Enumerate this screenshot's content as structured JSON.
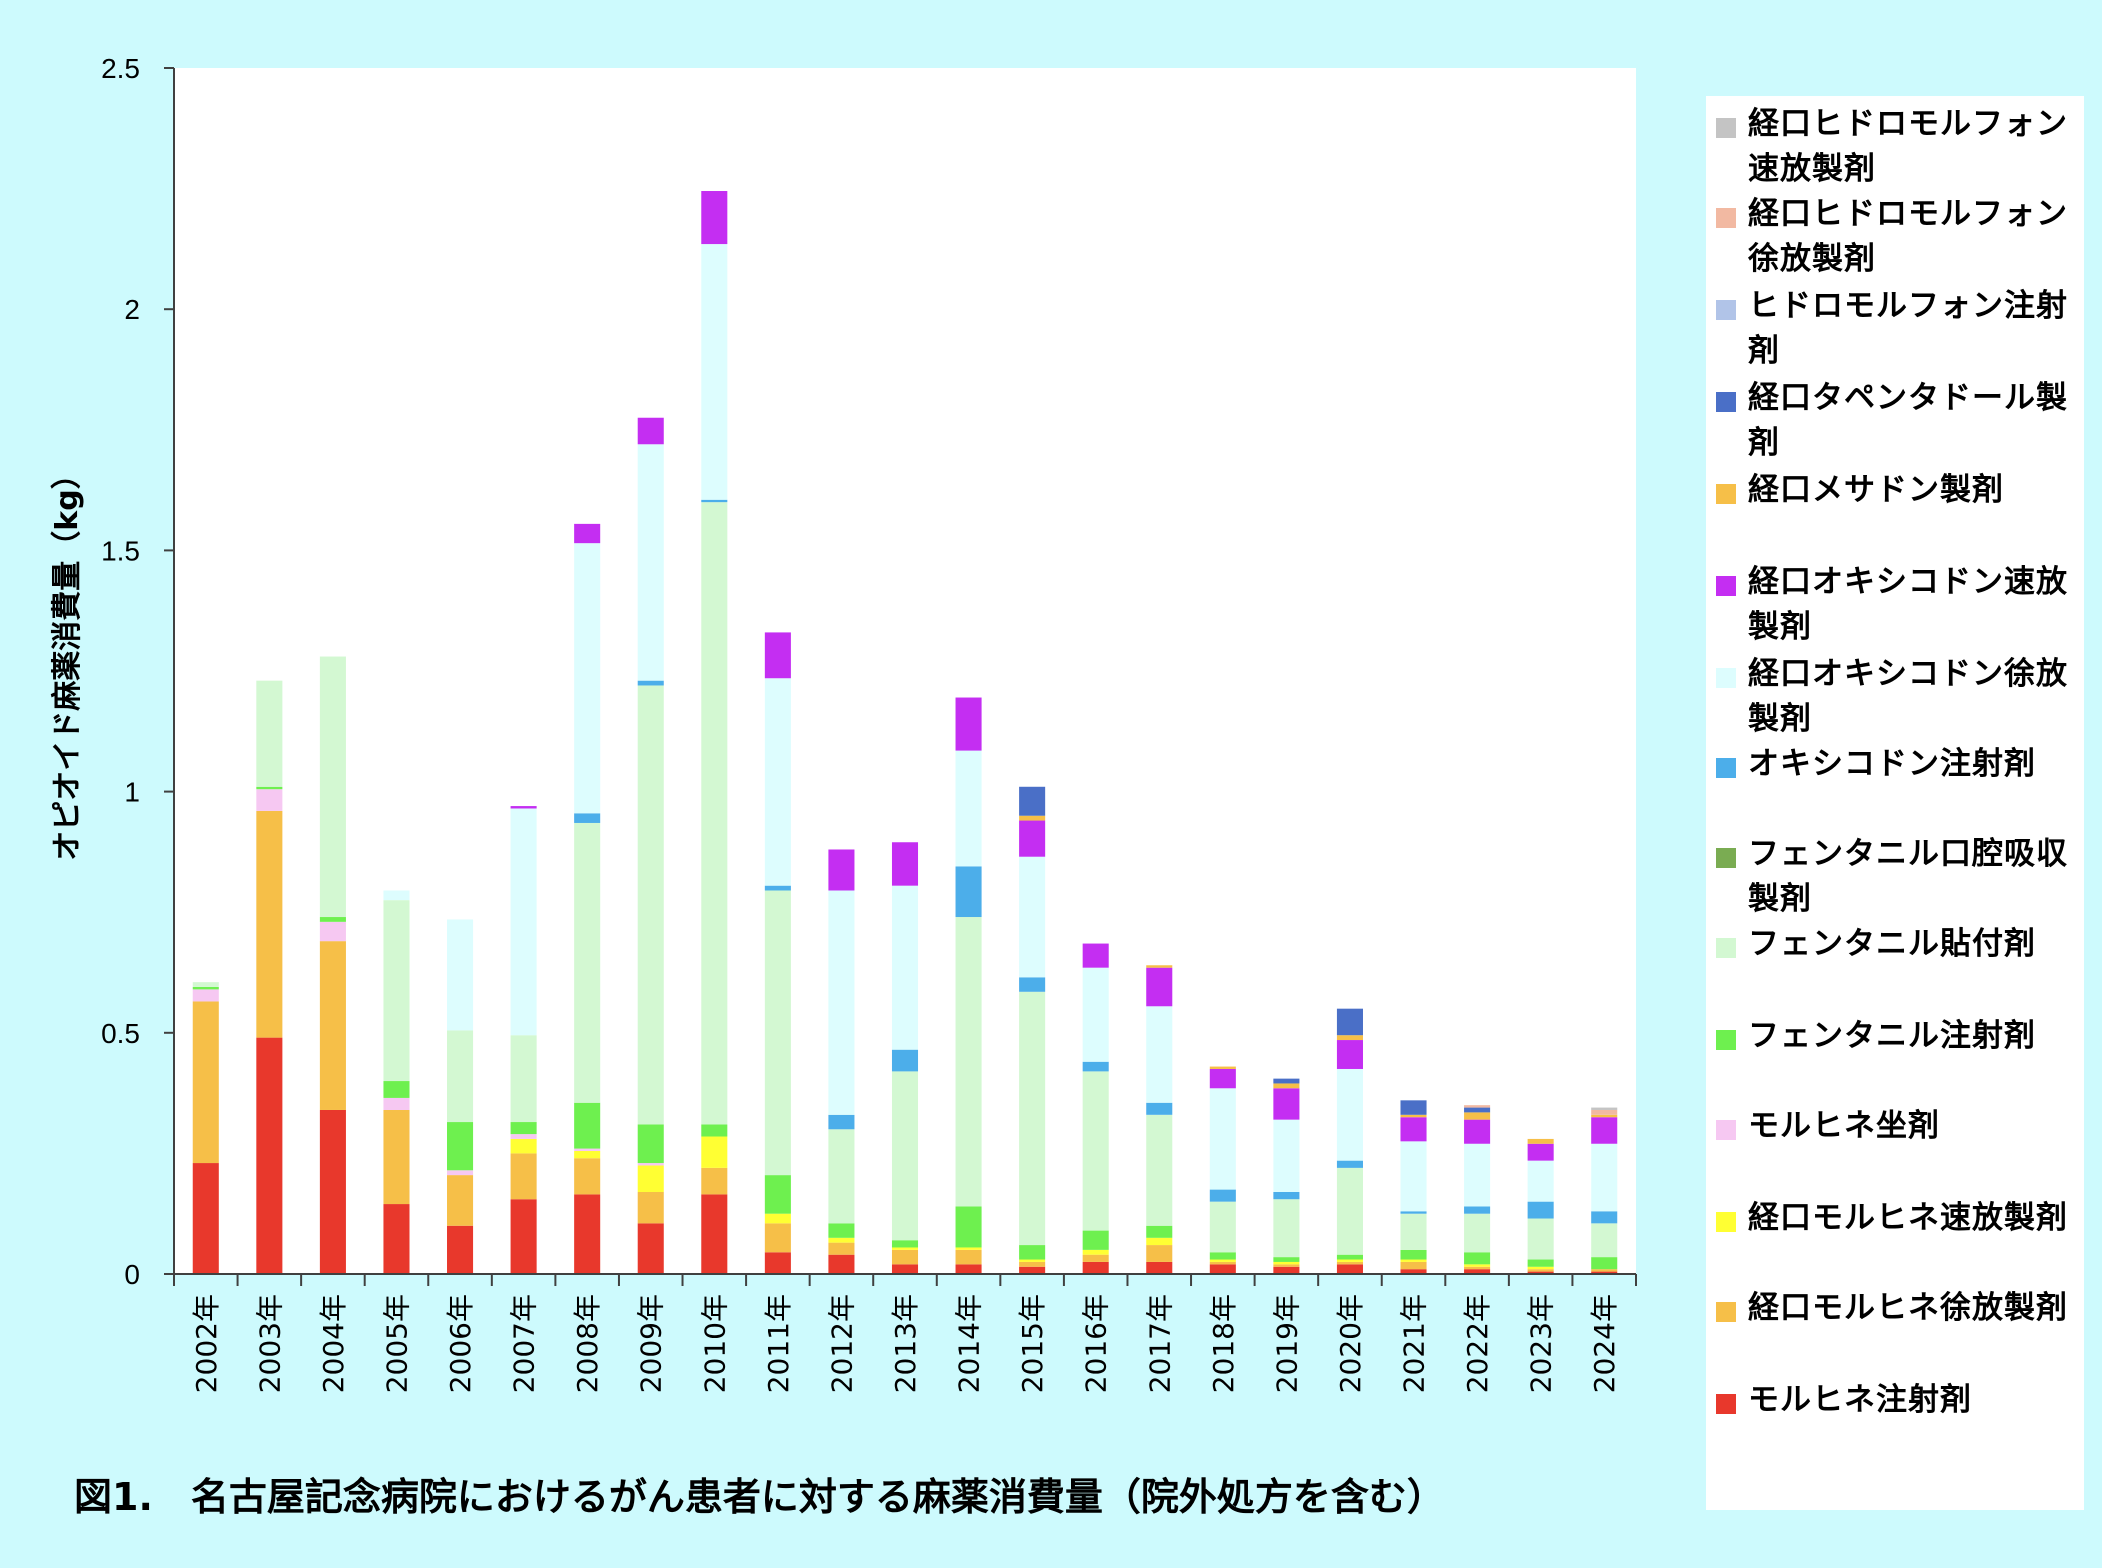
{
  "caption": "図1.　名古屋記念病院におけるがん患者に対する麻薬消費量（院外処方を含む）",
  "chart_data": {
    "type": "bar",
    "stacked": true,
    "title": "",
    "ylabel": "オピオイド麻薬消費量（kg）",
    "xlabel": "",
    "ylim": [
      0,
      2.5
    ],
    "yticks": [
      "0",
      "0.5",
      "1",
      "1.5",
      "2",
      "2.5"
    ],
    "legend_position": "right",
    "grid": false,
    "categories": [
      "2002年",
      "2003年",
      "2004年",
      "2005年",
      "2006年",
      "2007年",
      "2008年",
      "2009年",
      "2010年",
      "2011年",
      "2012年",
      "2013年",
      "2014年",
      "2015年",
      "2016年",
      "2017年",
      "2018年",
      "2019年",
      "2020年",
      "2021年",
      "2022年",
      "2023年",
      "2024年"
    ],
    "series": [
      {
        "name": "モルヒネ注射剤",
        "color": "#e8382c",
        "values": [
          0.23,
          0.49,
          0.34,
          0.145,
          0.1,
          0.155,
          0.165,
          0.105,
          0.165,
          0.045,
          0.04,
          0.02,
          0.02,
          0.015,
          0.025,
          0.025,
          0.02,
          0.015,
          0.02,
          0.01,
          0.01,
          0.005,
          0.005
        ]
      },
      {
        "name": "経口モルヒネ徐放製剤",
        "color": "#f6bf48",
        "values": [
          0.335,
          0.47,
          0.35,
          0.195,
          0.105,
          0.095,
          0.075,
          0.065,
          0.055,
          0.06,
          0.025,
          0.03,
          0.03,
          0.01,
          0.015,
          0.035,
          0.005,
          0.005,
          0.005,
          0.015,
          0.005,
          0.005,
          0.005
        ]
      },
      {
        "name": "経口モルヒネ速放製剤",
        "color": "#ffff33",
        "values": [
          0,
          0,
          0,
          0,
          0,
          0.03,
          0.015,
          0.055,
          0.065,
          0.02,
          0.01,
          0.005,
          0.005,
          0.005,
          0.01,
          0.015,
          0.005,
          0.005,
          0.005,
          0.005,
          0.005,
          0.005,
          0
        ]
      },
      {
        "name": "モルヒネ坐剤",
        "color": "#f6c8f2",
        "values": [
          0.025,
          0.045,
          0.04,
          0.025,
          0.01,
          0.01,
          0.005,
          0.005,
          0,
          0,
          0,
          0,
          0,
          0,
          0,
          0,
          0,
          0,
          0,
          0,
          0,
          0,
          0
        ]
      },
      {
        "name": "フェンタニル注射剤",
        "color": "#6ef04f",
        "values": [
          0.005,
          0.005,
          0.01,
          0.035,
          0.1,
          0.025,
          0.095,
          0.08,
          0.025,
          0.08,
          0.03,
          0.015,
          0.085,
          0.03,
          0.04,
          0.025,
          0.015,
          0.01,
          0.01,
          0.02,
          0.025,
          0.015,
          0.025
        ]
      },
      {
        "name": "フェンタニル貼付剤",
        "color": "#d3f8d2",
        "values": [
          0.01,
          0.22,
          0.54,
          0.375,
          0.19,
          0.18,
          0.58,
          0.91,
          1.29,
          0.59,
          0.195,
          0.35,
          0.6,
          0.525,
          0.33,
          0.23,
          0.105,
          0.12,
          0.18,
          0.075,
          0.08,
          0.085,
          0.07
        ]
      },
      {
        "name": "フェンタニル口腔吸収製剤",
        "color": "#7aac52",
        "values": [
          0,
          0,
          0,
          0,
          0,
          0,
          0,
          0,
          0,
          0,
          0,
          0,
          0,
          0,
          0,
          0,
          0,
          0,
          0,
          0,
          0,
          0,
          0
        ]
      },
      {
        "name": "オキシコドン注射剤",
        "color": "#4caeea",
        "values": [
          0,
          0,
          0,
          0,
          0,
          0,
          0.02,
          0.01,
          0.005,
          0.01,
          0.03,
          0.045,
          0.105,
          0.03,
          0.02,
          0.025,
          0.025,
          0.015,
          0.015,
          0.005,
          0.015,
          0.035,
          0.025
        ]
      },
      {
        "name": "経口オキシコドン徐放製剤",
        "color": "#ddfdfe",
        "values": [
          0,
          0,
          0,
          0.02,
          0.23,
          0.47,
          0.56,
          0.49,
          0.53,
          0.43,
          0.465,
          0.34,
          0.24,
          0.25,
          0.195,
          0.2,
          0.21,
          0.15,
          0.19,
          0.145,
          0.13,
          0.085,
          0.14
        ]
      },
      {
        "name": "経口オキシコドン速放製剤",
        "color": "#c42ef2",
        "values": [
          0,
          0,
          0,
          0,
          0,
          0.005,
          0.04,
          0.055,
          0.11,
          0.095,
          0.085,
          0.09,
          0.11,
          0.075,
          0.05,
          0.08,
          0.04,
          0.065,
          0.06,
          0.05,
          0.05,
          0.035,
          0.055
        ]
      },
      {
        "name": "経口メサドン製剤",
        "color": "#f6bf48",
        "values": [
          0,
          0,
          0,
          0,
          0,
          0,
          0,
          0,
          0,
          0,
          0,
          0,
          0,
          0.01,
          0,
          0.005,
          0.005,
          0.01,
          0.01,
          0.005,
          0.015,
          0.01,
          0.005
        ]
      },
      {
        "name": "経口タペンタドール製剤",
        "color": "#4a6fc7",
        "values": [
          0,
          0,
          0,
          0,
          0,
          0,
          0,
          0,
          0,
          0,
          0,
          0,
          0,
          0.06,
          0,
          0,
          0,
          0.01,
          0.055,
          0.03,
          0.01,
          0,
          0
        ]
      },
      {
        "name": "ヒドロモルフォン注射剤",
        "color": "#b1c4e8",
        "values": [
          0,
          0,
          0,
          0,
          0,
          0,
          0,
          0,
          0,
          0,
          0,
          0,
          0,
          0,
          0,
          0,
          0,
          0,
          0,
          0,
          0,
          0,
          0
        ]
      },
      {
        "name": "経口ヒドロモルフォン徐放製剤",
        "color": "#f2b9a2",
        "values": [
          0,
          0,
          0,
          0,
          0,
          0,
          0,
          0,
          0,
          0,
          0,
          0,
          0,
          0,
          0,
          0,
          0,
          0,
          0,
          0,
          0.005,
          0,
          0.01
        ]
      },
      {
        "name": "経口ヒドロモルフォン速放製剤",
        "color": "#c4c4c4",
        "values": [
          0,
          0,
          0,
          0,
          0,
          0,
          0,
          0,
          0,
          0,
          0,
          0,
          0,
          0,
          0,
          0,
          0,
          0,
          0,
          0,
          0,
          0,
          0.005
        ]
      }
    ]
  },
  "legend": {
    "items": [
      {
        "label": "経口ヒドロモルフォン速放製剤",
        "color": "#c4c4c4"
      },
      {
        "label": "経口ヒドロモルフォン徐放製剤",
        "color": "#f2b9a2"
      },
      {
        "label": "ヒドロモルフォン注射剤",
        "color": "#b1c4e8"
      },
      {
        "label": "経口タペンタドール製剤",
        "color": "#4a6fc7"
      },
      {
        "label": "経口メサドン製剤",
        "color": "#f6bf48"
      },
      {
        "label": "経口オキシコドン速放製剤",
        "color": "#c42ef2"
      },
      {
        "label": "経口オキシコドン徐放製剤",
        "color": "#ddfdfe"
      },
      {
        "label": "オキシコドン注射剤",
        "color": "#4caeea"
      },
      {
        "label": "フェンタニル口腔吸収製剤",
        "color": "#7aac52"
      },
      {
        "label": "フェンタニル貼付剤",
        "color": "#d3f8d2"
      },
      {
        "label": "フェンタニル注射剤",
        "color": "#6ef04f"
      },
      {
        "label": "モルヒネ坐剤",
        "color": "#f6c8f2"
      },
      {
        "label": "経口モルヒネ速放製剤",
        "color": "#ffff33"
      },
      {
        "label": "経口モルヒネ徐放製剤",
        "color": "#f6bf48"
      },
      {
        "label": "モルヒネ注射剤",
        "color": "#e8382c"
      }
    ]
  }
}
